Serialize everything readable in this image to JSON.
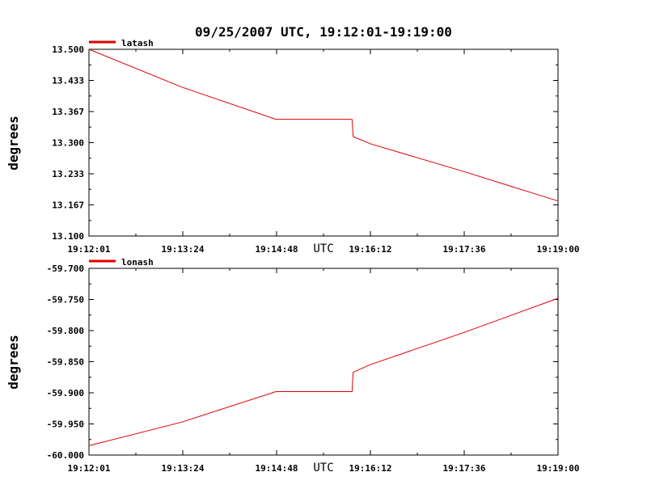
{
  "chart_data": {
    "title": "09/25/2007  UTC, 19:12:01-19:19:00",
    "xlabel": "UTC",
    "xlim": [
      "19:12:01",
      "19:19:00"
    ],
    "x_ticks": [
      "19:12:01",
      "19:13:24",
      "19:14:48",
      "19:16:12",
      "19:17:36",
      "19:19:00"
    ],
    "colors": {
      "series": "#e00000",
      "axis": "#000000",
      "background": "#ffffff"
    },
    "panels": [
      {
        "type": "line",
        "ylabel": "degrees",
        "ylim": [
          13.1,
          13.5
        ],
        "y_ticks": [
          "13.500",
          "13.433",
          "13.367",
          "13.300",
          "13.233",
          "13.167",
          "13.100"
        ],
        "series": [
          {
            "name": "latash",
            "x": [
              "19:12:01",
              "19:13:24",
              "19:14:48",
              "19:15:56",
              "19:15:57",
              "19:16:12",
              "19:17:36",
              "19:19:00"
            ],
            "values": [
              13.5,
              13.419,
              13.35,
              13.35,
              13.313,
              13.298,
              13.238,
              13.175
            ]
          }
        ]
      },
      {
        "type": "line",
        "ylabel": "degrees",
        "ylim": [
          -60.0,
          -59.7
        ],
        "y_ticks": [
          "-59.700",
          "-59.750",
          "-59.800",
          "-59.850",
          "-59.900",
          "-59.950",
          "-60.000"
        ],
        "series": [
          {
            "name": "lonash",
            "x": [
              "19:12:01",
              "19:13:24",
              "19:14:48",
              "19:15:56",
              "19:15:57",
              "19:16:12",
              "19:17:36",
              "19:19:00"
            ],
            "values": [
              -59.985,
              -59.947,
              -59.898,
              -59.898,
              -59.867,
              -59.855,
              -59.803,
              -59.748
            ]
          }
        ]
      }
    ]
  }
}
